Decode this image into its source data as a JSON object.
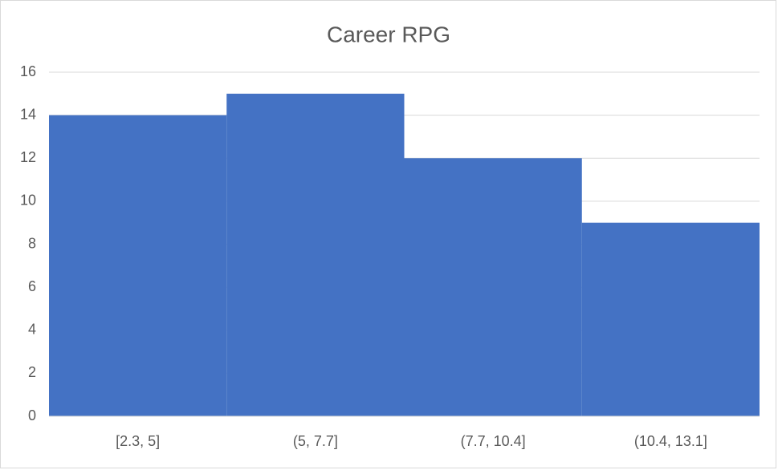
{
  "chart_data": {
    "type": "bar",
    "title": "Career RPG",
    "categories": [
      "[2.3, 5]",
      "(5, 7.7]",
      "(7.7, 10.4]",
      "(10.4, 13.1]"
    ],
    "values": [
      14,
      15,
      12,
      9
    ],
    "color": "#4472c4",
    "ylim": [
      0,
      16
    ],
    "yticks": [
      0,
      2,
      4,
      6,
      8,
      10,
      12,
      14,
      16
    ],
    "grid": true
  }
}
